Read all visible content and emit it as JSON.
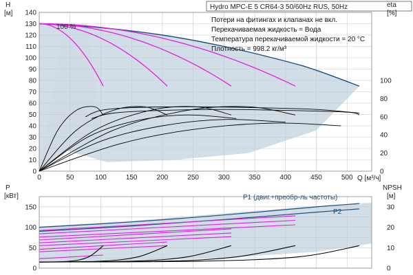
{
  "title": "Hydro MPC-E 5 CR64-3 50/60Hz RUS, 50Hz",
  "notes": [
    "Потери на фитингах и клапанах не вкл.",
    "Перекачиваемая жидкость = Вода",
    "Температура перекачиваемой жидкости = 20 °C",
    "Плотность = 998.2 кг/м³"
  ],
  "colors": {
    "region_fill": "#cfdbe6",
    "max_curve": "#1e4f79",
    "pump_curve": "#e020e0",
    "eff_curve": "#000000",
    "grid": "#c8c8c8"
  },
  "chart_data": [
    {
      "type": "line",
      "name": "top",
      "xlabel": "Q [м³/ч]",
      "x_ticks": [
        "0",
        "50",
        "100",
        "150",
        "200",
        "250",
        "300",
        "350",
        "400",
        "450",
        "500"
      ],
      "xlim": [
        0,
        540
      ],
      "ylabel_left": [
        "H",
        "[м]"
      ],
      "left_ticks": [
        "0",
        "10",
        "20",
        "30",
        "40",
        "50",
        "60",
        "70",
        "80",
        "90",
        "100",
        "110",
        "120",
        "130",
        "140"
      ],
      "ylim_left": [
        0,
        140
      ],
      "ylabel_right": [
        "eta",
        "[%]"
      ],
      "right_ticks": [
        "0",
        "20",
        "40",
        "60",
        "80",
        "100"
      ],
      "ylim_right": [
        0,
        175
      ],
      "annotation": "100 %",
      "head_max_curve": {
        "x": [
          0,
          100,
          200,
          300,
          400,
          450,
          520
        ],
        "y": [
          130,
          126.5,
          120,
          110,
          97,
          89,
          75
        ]
      },
      "head_pump_curves": [
        {
          "pumps": 1,
          "x": [
            0,
            104
          ],
          "y": [
            130,
            75
          ]
        },
        {
          "pumps": 2,
          "x": [
            0,
            208
          ],
          "y": [
            130,
            75
          ]
        },
        {
          "pumps": 3,
          "x": [
            0,
            312
          ],
          "y": [
            130,
            75
          ]
        },
        {
          "pumps": 4,
          "x": [
            0,
            416
          ],
          "y": [
            130,
            75
          ]
        }
      ],
      "efficiency_curves": [
        {
          "x": [
            0,
            30,
            60,
            90,
            104
          ],
          "y": [
            0,
            45,
            67,
            71,
            62
          ]
        },
        {
          "x": [
            0,
            60,
            120,
            170,
            208
          ],
          "y": [
            0,
            45,
            67,
            71,
            62
          ]
        },
        {
          "x": [
            0,
            90,
            180,
            255,
            312
          ],
          "y": [
            0,
            45,
            67,
            71,
            62
          ]
        },
        {
          "x": [
            0,
            120,
            240,
            340,
            416
          ],
          "y": [
            0,
            45,
            67,
            71,
            62
          ]
        },
        {
          "x": [
            0,
            80,
            160,
            240,
            320
          ],
          "y": [
            0,
            38,
            56,
            62,
            58
          ]
        },
        {
          "x": [
            0,
            100,
            200,
            300,
            400
          ],
          "y": [
            0,
            33,
            50,
            57,
            54
          ]
        },
        {
          "x": [
            0,
            130,
            250,
            380,
            490
          ],
          "y": [
            0,
            30,
            46,
            53,
            50
          ]
        },
        {
          "x": [
            75,
            100,
            150,
            250,
            350,
            450,
            520
          ],
          "y": [
            60,
            67,
            70,
            71,
            70,
            68,
            64
          ]
        },
        {
          "x": [
            85,
            120,
            200,
            300,
            400,
            500,
            520
          ],
          "y": [
            58,
            64,
            67,
            68,
            67,
            65,
            62
          ]
        }
      ]
    },
    {
      "type": "line",
      "name": "bottom",
      "xlim": [
        0,
        540
      ],
      "ylabel_left": [
        "P",
        "[кВт]"
      ],
      "left_ticks": [
        "0",
        "50",
        "100",
        "150"
      ],
      "ylim_left": [
        0,
        175
      ],
      "ylabel_right": [
        "NPSH",
        "[м]"
      ],
      "right_ticks": [
        "0",
        "10",
        "20",
        "30"
      ],
      "ylim_right": [
        0,
        35
      ],
      "series": [
        {
          "name": "P1 (двиг.+преобр-ль частоты)",
          "x": [
            0,
            150,
            300,
            450,
            520
          ],
          "y": [
            100,
            113,
            130,
            150,
            158
          ]
        },
        {
          "name": "P2",
          "x": [
            0,
            150,
            300,
            450,
            520
          ],
          "y": [
            90,
            103,
            119,
            137,
            145
          ]
        }
      ],
      "power_pump_curves": [
        {
          "x": [
            0,
            104
          ],
          "y": [
            23,
            32
          ]
        },
        {
          "x": [
            0,
            208
          ],
          "y": [
            46,
            64
          ]
        },
        {
          "x": [
            0,
            312
          ],
          "y": [
            69,
            96
          ]
        },
        {
          "x": [
            0,
            416
          ],
          "y": [
            92,
            128
          ]
        },
        {
          "x": [
            0,
            208
          ],
          "y": [
            40,
            55
          ]
        },
        {
          "x": [
            0,
            312
          ],
          "y": [
            62,
            86
          ]
        },
        {
          "x": [
            0,
            416
          ],
          "y": [
            84,
            117
          ]
        },
        {
          "x": [
            0,
            312
          ],
          "y": [
            55,
            77
          ]
        },
        {
          "x": [
            0,
            416
          ],
          "y": [
            76,
            106
          ]
        }
      ],
      "npsh_curves": [
        {
          "x": [
            0,
            50,
            80,
            104
          ],
          "y": [
            3,
            3.4,
            5.5,
            11
          ]
        },
        {
          "x": [
            0,
            100,
            160,
            208
          ],
          "y": [
            3,
            3.4,
            5.5,
            11
          ]
        },
        {
          "x": [
            0,
            150,
            240,
            312
          ],
          "y": [
            3,
            3.4,
            5.5,
            11
          ]
        },
        {
          "x": [
            0,
            200,
            320,
            416
          ],
          "y": [
            3,
            3.4,
            5.5,
            11
          ]
        },
        {
          "x": [
            0,
            260,
            420,
            520
          ],
          "y": [
            3,
            3.4,
            5.5,
            11
          ]
        }
      ]
    }
  ]
}
